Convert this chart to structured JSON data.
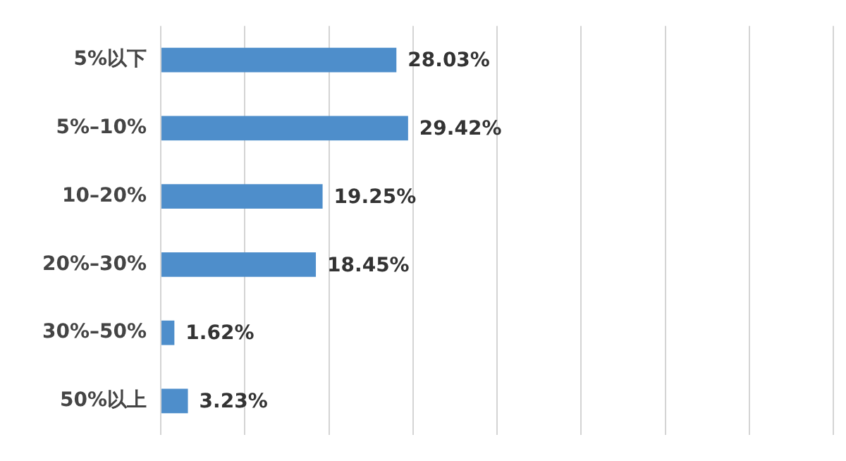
{
  "chart_data": {
    "type": "bar",
    "orientation": "horizontal",
    "categories": [
      "5%以下",
      "5%–10%",
      "10–20%",
      "20%–30%",
      "30%–50%",
      "50%以上"
    ],
    "values": [
      28.03,
      29.42,
      19.25,
      18.45,
      1.62,
      3.23
    ],
    "value_labels": [
      "28.03%",
      "29.42%",
      "19.25%",
      "18.45%",
      "1.62%",
      "3.23%"
    ],
    "color": "#4e8ecb",
    "xlim": [
      0,
      80
    ],
    "xticks": [
      {
        "value": 0,
        "label": null
      },
      {
        "value": 10,
        "label": null
      },
      {
        "value": 20,
        "label": null
      },
      {
        "value": 30,
        "label": null
      },
      {
        "value": 40,
        "label": null
      },
      {
        "value": 50,
        "label": null
      },
      {
        "value": 60,
        "label": null
      },
      {
        "value": 70,
        "label": null
      },
      {
        "value": 80,
        "label": null
      }
    ],
    "grid": "x",
    "tick_labels": "y",
    "legend": false
  }
}
